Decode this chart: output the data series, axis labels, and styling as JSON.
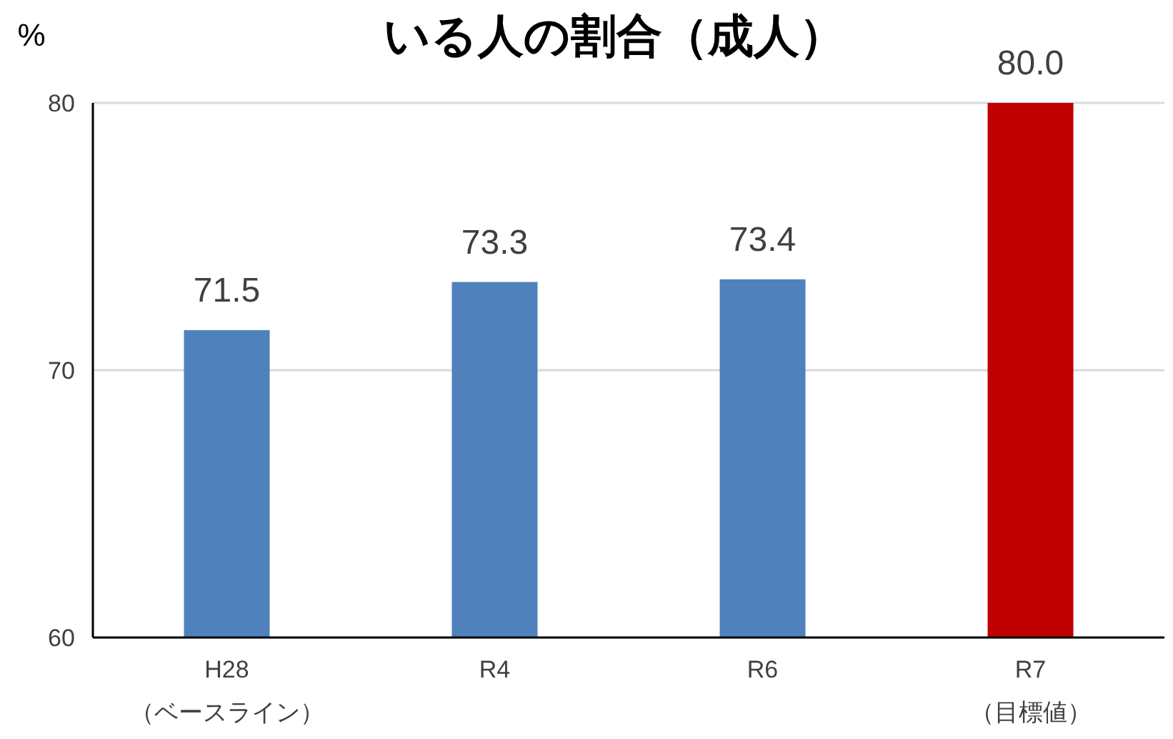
{
  "chart_data": {
    "type": "bar",
    "title": "いる人の割合（成人）",
    "ylabel": "%",
    "categories": [
      "H28\n（ベースライン）",
      "R4",
      "R6",
      "R7\n（目標値）"
    ],
    "values": [
      71.5,
      73.3,
      73.4,
      80.0
    ],
    "colors": [
      "#4f81bd",
      "#4f81bd",
      "#4f81bd",
      "#c00000"
    ],
    "value_labels": [
      "71.5",
      "73.3",
      "73.4",
      "80.0"
    ],
    "ylim": [
      60,
      80
    ],
    "yticks": [
      60,
      70,
      80
    ],
    "grid": "y"
  }
}
